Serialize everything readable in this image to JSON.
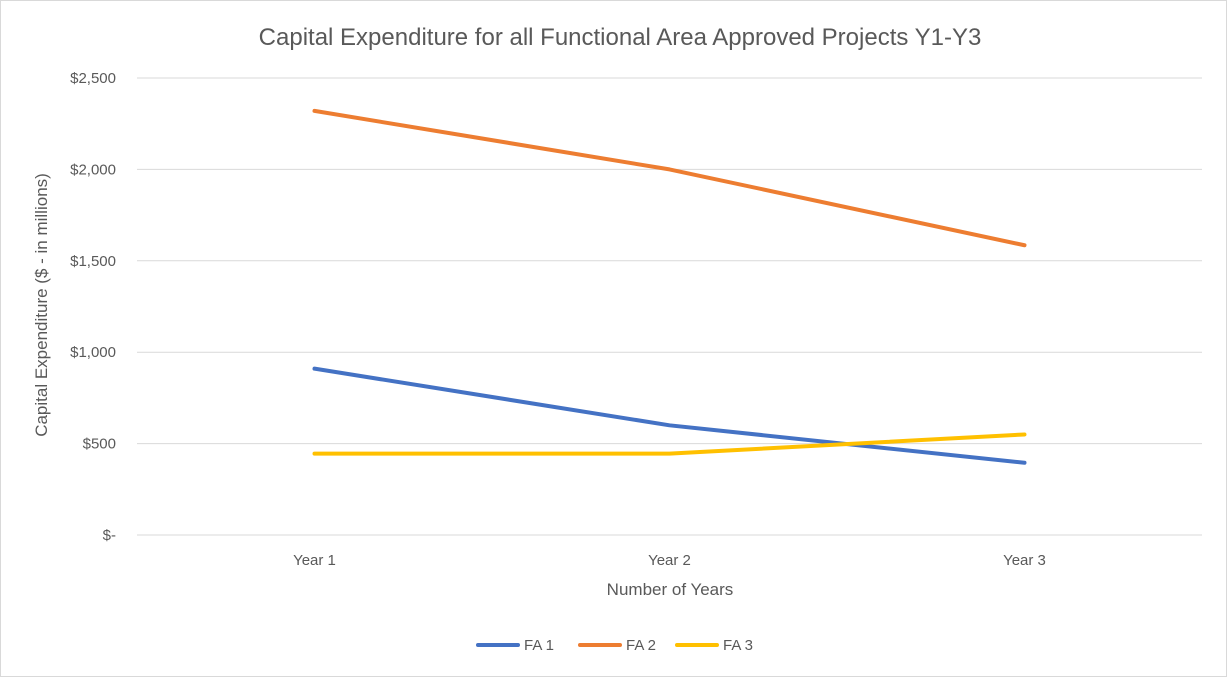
{
  "chart_data": {
    "type": "line",
    "title": "Capital Expenditure for all Functional Area Approved Projects Y1-Y3",
    "xlabel": "Number of Years",
    "ylabel": "Capital Expenditure ($ - in millions)",
    "categories": [
      "Year 1",
      "Year 2",
      "Year 3"
    ],
    "ylim": [
      0,
      2500
    ],
    "y_ticks": [
      0,
      500,
      1000,
      1500,
      2000,
      2500
    ],
    "y_tick_labels": [
      "$-",
      "$500",
      "$1,000",
      "$1,500",
      "$2,000",
      "$2,500"
    ],
    "grid": true,
    "legend_position": "bottom",
    "series": [
      {
        "name": "FA 1",
        "values": [
          910,
          600,
          395
        ],
        "color": "#4472c4"
      },
      {
        "name": "FA 2",
        "values": [
          2320,
          2000,
          1585
        ],
        "color": "#ed7d31"
      },
      {
        "name": "FA 3",
        "values": [
          445,
          445,
          550
        ],
        "color": "#ffc000"
      }
    ]
  }
}
